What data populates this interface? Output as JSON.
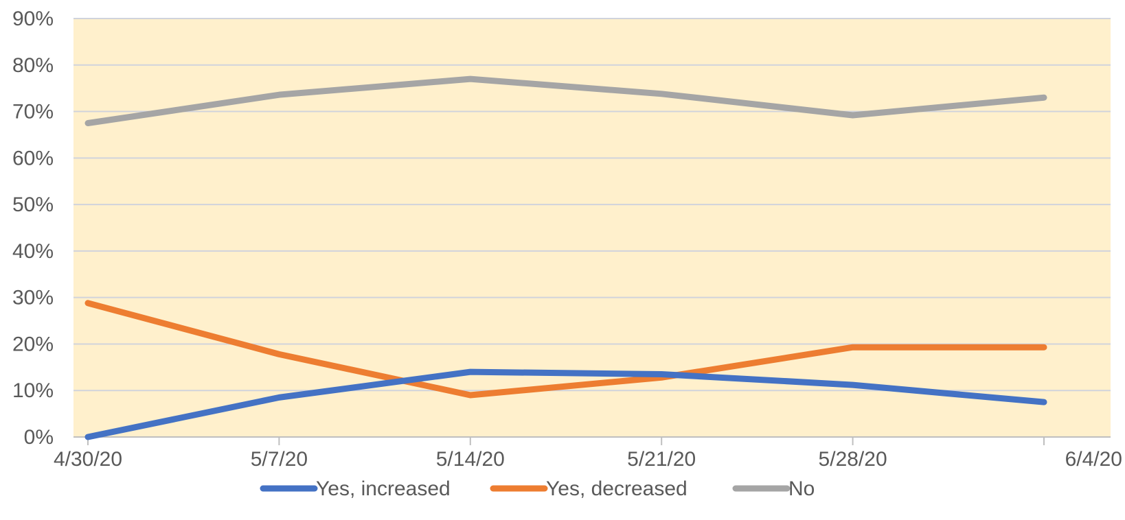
{
  "chart_data": {
    "type": "line",
    "x": [
      "4/30/20",
      "5/7/20",
      "5/14/20",
      "5/21/20",
      "5/28/20",
      "6/4/20"
    ],
    "ylim": [
      0,
      90
    ],
    "yticks": [
      "0%",
      "10%",
      "20%",
      "30%",
      "40%",
      "50%",
      "60%",
      "70%",
      "80%",
      "90%"
    ],
    "y_unit": "%",
    "grid": "horizontal",
    "legend": "bottom",
    "plot_background": "#FFF0CC",
    "series": [
      {
        "name": "Yes, increased",
        "color": "#4472C4",
        "values": [
          0,
          8.5,
          14,
          13.5,
          11.2,
          7.5
        ]
      },
      {
        "name": "Yes, decreased",
        "color": "#ED7D31",
        "values": [
          28.8,
          17.8,
          9,
          12.8,
          19.3,
          19.3
        ]
      },
      {
        "name": "No",
        "color": "#A5A5A5",
        "values": [
          67.5,
          73.6,
          77,
          73.8,
          69.2,
          73
        ]
      }
    ]
  }
}
